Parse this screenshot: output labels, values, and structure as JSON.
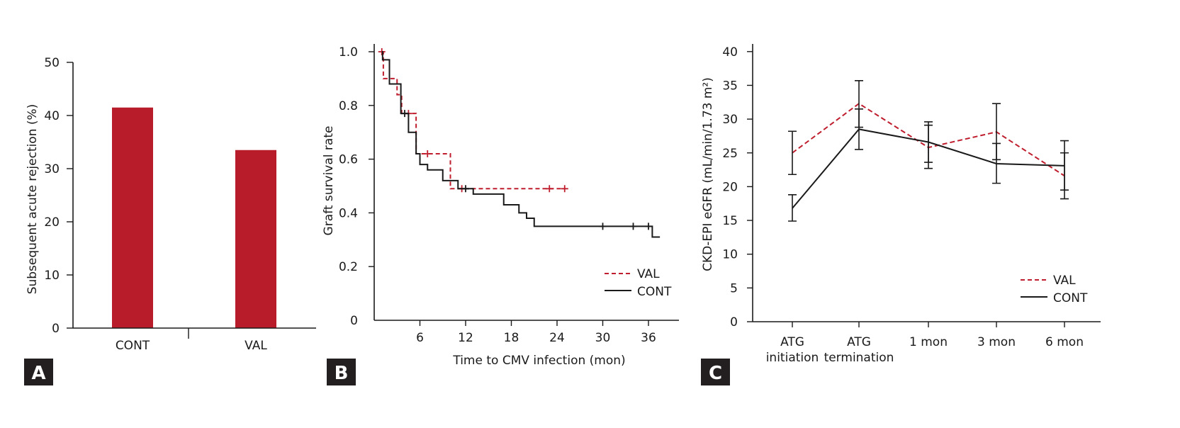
{
  "colors": {
    "val": "#bf1e2e",
    "cont": "#1a1a1a",
    "bar": "#b81c2b"
  },
  "chart_data": [
    {
      "type": "bar",
      "panel": "A",
      "categories": [
        "CONT",
        "VAL"
      ],
      "values": [
        41.5,
        33.5
      ],
      "ylabel": "Subsequent acute rejection (%)",
      "xlabel": "",
      "ylim": [
        0,
        50
      ],
      "yticks": [
        "0",
        "10",
        "20",
        "30",
        "40",
        "50"
      ]
    },
    {
      "type": "line",
      "subtype": "kaplan-meier",
      "panel": "B",
      "xlabel": "Time to CMV infection (mon)",
      "ylabel": "Graft survival rate",
      "xlim": [
        0,
        38
      ],
      "ylim": [
        0,
        1.0
      ],
      "xticks": [
        "6",
        "12",
        "18",
        "24",
        "30",
        "36"
      ],
      "yticks": [
        "0",
        "0.2",
        "0.4",
        "0.6",
        "0.8",
        "1.0"
      ],
      "legend": "bottom-right",
      "series": [
        {
          "name": "VAL",
          "style": "dashed",
          "steps": [
            [
              1,
              1.0
            ],
            [
              1.2,
              0.9
            ],
            [
              3,
              0.84
            ],
            [
              3.6,
              0.77
            ],
            [
              5.5,
              0.62
            ],
            [
              10,
              0.49
            ],
            [
              25,
              0.49
            ]
          ],
          "censored": [
            [
              1,
              1.0
            ],
            [
              4.5,
              0.77
            ],
            [
              7,
              0.62
            ],
            [
              11.5,
              0.49
            ],
            [
              23,
              0.49
            ],
            [
              25,
              0.49
            ]
          ]
        },
        {
          "name": "CONT",
          "style": "solid",
          "steps": [
            [
              1,
              1.0
            ],
            [
              1.1,
              0.97
            ],
            [
              2,
              0.88
            ],
            [
              3.5,
              0.77
            ],
            [
              4.5,
              0.7
            ],
            [
              5.5,
              0.62
            ],
            [
              6,
              0.58
            ],
            [
              7,
              0.56
            ],
            [
              9,
              0.52
            ],
            [
              11,
              0.49
            ],
            [
              13,
              0.47
            ],
            [
              17,
              0.43
            ],
            [
              19,
              0.4
            ],
            [
              20,
              0.38
            ],
            [
              21,
              0.35
            ],
            [
              36.5,
              0.31
            ],
            [
              37.5,
              0.31
            ]
          ],
          "censored": [
            [
              4,
              0.77
            ],
            [
              12,
              0.49
            ],
            [
              30,
              0.35
            ],
            [
              34,
              0.35
            ],
            [
              36,
              0.35
            ]
          ]
        }
      ]
    },
    {
      "type": "line",
      "panel": "C",
      "categories": [
        "ATG\ninitiation",
        "ATG\ntermination",
        "1 mon",
        "3 mon",
        "6 mon"
      ],
      "ylabel": "CKD-EPI eGFR (mL/min/1.73 m²)",
      "ylim": [
        0,
        40
      ],
      "yticks": [
        "0",
        "5",
        "10",
        "15",
        "20",
        "25",
        "30",
        "35",
        "40"
      ],
      "legend": "bottom-right",
      "series": [
        {
          "name": "VAL",
          "style": "dashed",
          "values": [
            25,
            32.3,
            25.8,
            28.1,
            21.6
          ],
          "err_low": [
            21.8,
            28.8,
            22.7,
            24.0,
            18.2
          ],
          "err_high": [
            28.2,
            35.7,
            29.6,
            32.3,
            25.0
          ]
        },
        {
          "name": "CONT",
          "style": "solid",
          "values": [
            16.8,
            28.5,
            26.6,
            23.4,
            23.1
          ],
          "err_low": [
            14.9,
            25.5,
            23.6,
            20.5,
            19.5
          ],
          "err_high": [
            18.8,
            31.5,
            29.1,
            26.4,
            26.8
          ]
        }
      ]
    }
  ],
  "panel_labels": [
    "A",
    "B",
    "C"
  ]
}
